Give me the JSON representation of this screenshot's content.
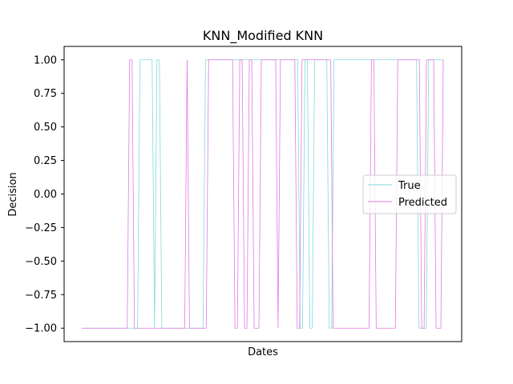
{
  "chart_data": {
    "type": "line",
    "title": "KNN_Modified KNN",
    "xlabel": "Dates",
    "ylabel": "Decision",
    "ylim": [
      -1.1,
      1.1
    ],
    "yticks": [
      -1.0,
      -0.75,
      -0.5,
      -0.25,
      0.0,
      0.25,
      0.5,
      0.75,
      1.0
    ],
    "ytick_labels": [
      "−1.00",
      "−0.75",
      "−0.50",
      "−0.25",
      "0.00",
      "0.25",
      "0.50",
      "0.75",
      "1.00"
    ],
    "xticks_shown": false,
    "grid": false,
    "legend_position": "center-right",
    "series": [
      {
        "name": "True",
        "color": "#7fdada",
        "values": [
          -1,
          -1,
          -1,
          -1,
          -1,
          -1,
          -1,
          -1,
          -1,
          -1,
          -1,
          -1,
          -1,
          -1,
          -1,
          -1,
          -1,
          -1,
          -1,
          -1,
          -1,
          -1,
          -1,
          -1,
          1,
          1,
          1,
          1,
          1,
          1,
          -1,
          1,
          1,
          -1,
          -1,
          -1,
          -1,
          -1,
          -1,
          -1,
          -1,
          -1,
          -1,
          -1,
          -1,
          -1,
          -1,
          -1,
          -1,
          -1,
          -1,
          1,
          1,
          1,
          1,
          1,
          1,
          1,
          1,
          1,
          1,
          1,
          1,
          1,
          1,
          1,
          1,
          1,
          1,
          1,
          1,
          1,
          1,
          1,
          1,
          1,
          1,
          1,
          1,
          1,
          1,
          1,
          1,
          1,
          1,
          1,
          1,
          1,
          1,
          1,
          -1,
          -1,
          1,
          1,
          -1,
          -1,
          1,
          1,
          1,
          1,
          1,
          1,
          -1,
          -1,
          1,
          1,
          1,
          1,
          1,
          1,
          1,
          1,
          1,
          1,
          1,
          1,
          1,
          1,
          1,
          1,
          1,
          1,
          1,
          1,
          1,
          1,
          1,
          1,
          1,
          1,
          1,
          1,
          1,
          1,
          1,
          1,
          1,
          1,
          1,
          -1,
          -1,
          -1,
          -1,
          1,
          1,
          1,
          1,
          1,
          1,
          1
        ]
      },
      {
        "name": "Predicted",
        "color": "#e377e3",
        "values": [
          -1,
          -1,
          -1,
          -1,
          -1,
          -1,
          -1,
          -1,
          -1,
          -1,
          -1,
          -1,
          -1,
          -1,
          -1,
          -1,
          -1,
          -1,
          -1,
          -1,
          1,
          1,
          -1,
          -1,
          -1,
          -1,
          -1,
          -1,
          -1,
          -1,
          -1,
          -1,
          -1,
          -1,
          -1,
          -1,
          -1,
          -1,
          -1,
          -1,
          -1,
          -1,
          -1,
          -1,
          1,
          -1,
          -1,
          -1,
          -1,
          -1,
          -1,
          -1,
          -1,
          1,
          1,
          1,
          1,
          1,
          1,
          1,
          1,
          1,
          1,
          1,
          -1,
          -1,
          1,
          1,
          -1,
          -1,
          1,
          1,
          -1,
          -1,
          -1,
          1,
          1,
          1,
          1,
          1,
          1,
          1,
          -1,
          1,
          1,
          1,
          1,
          1,
          1,
          1,
          -1,
          -1,
          1,
          1,
          1,
          1,
          1,
          1,
          1,
          1,
          1,
          1,
          1,
          1,
          1,
          -1,
          -1,
          -1,
          -1,
          -1,
          -1,
          -1,
          -1,
          -1,
          -1,
          -1,
          -1,
          -1,
          -1,
          -1,
          -1,
          1,
          1,
          -1,
          -1,
          -1,
          -1,
          -1,
          -1,
          -1,
          -1,
          -1,
          1,
          1,
          1,
          1,
          1,
          1,
          1,
          1,
          1,
          1,
          -1,
          -1,
          1,
          1,
          1,
          1,
          -1,
          -1,
          -1,
          1
        ]
      }
    ]
  }
}
